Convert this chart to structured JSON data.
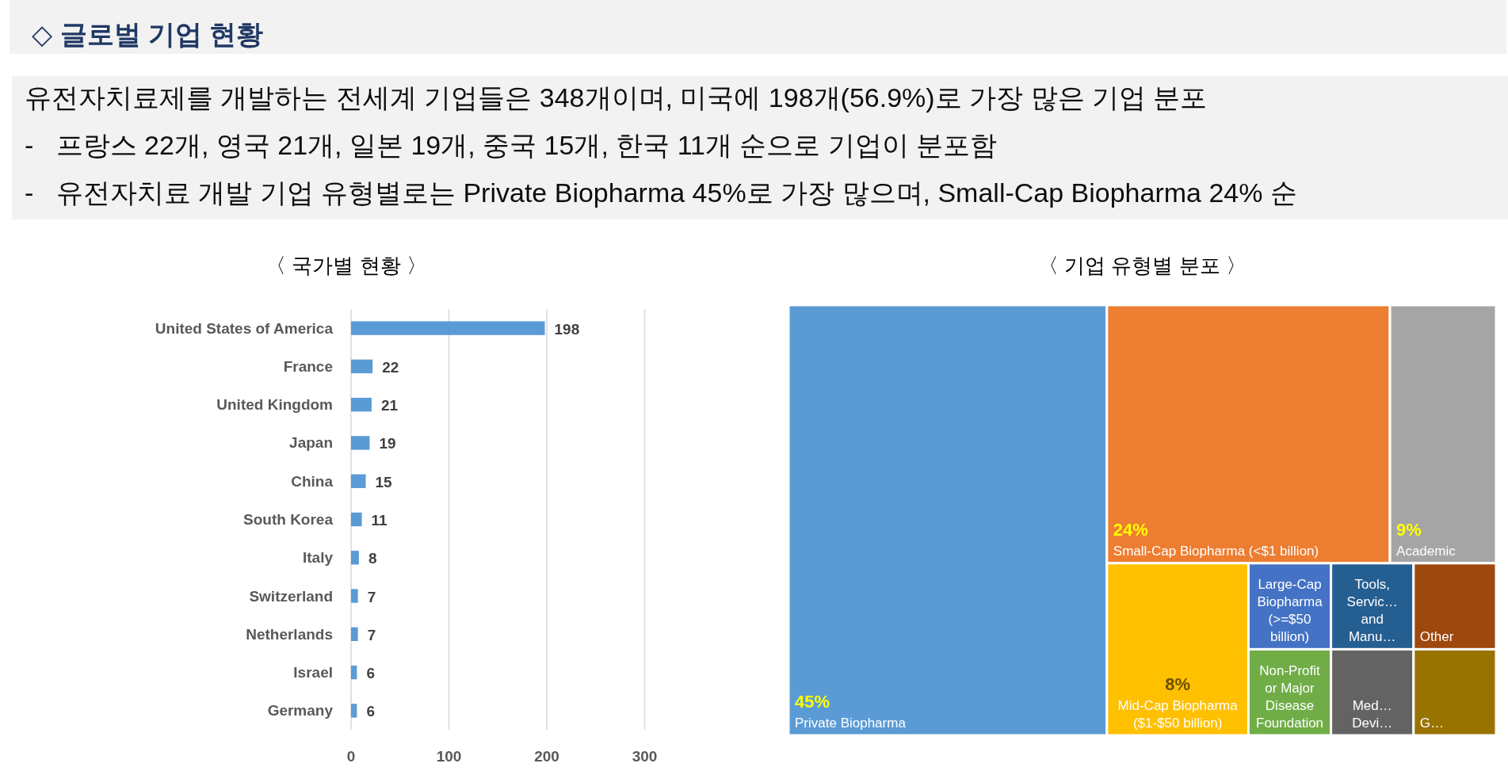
{
  "chart_data": [
    {
      "type": "other",
      "title": "◇ 글로벌 기업 현황",
      "annotations": [
        "유전자치료제를 개발하는 전세계 기업들은 348개이며, 미국에 198개(56.9%)로 가장 많은 기업 분포",
        "-   프랑스 22개, 영국 21개, 일본 19개, 중국 15개, 한국 11개 순으로 기업이 분포함",
        "-   유전자치료 개발 기업 유형별로는 Private Biopharma 45%로 가장 많으며, Small-Cap Biopharma 24% 순"
      ]
    },
    {
      "type": "bar",
      "orientation": "horizontal",
      "title": "〈 국가별 현황 〉",
      "categories": [
        "United States of America",
        "France",
        "United Kingdom",
        "Japan",
        "China",
        "South Korea",
        "Italy",
        "Switzerland",
        "Netherlands",
        "Israel",
        "Germany"
      ],
      "values": [
        198,
        22,
        21,
        19,
        15,
        11,
        8,
        7,
        7,
        6,
        6
      ],
      "color": "#5b9bd5",
      "xlim": [
        0,
        300
      ],
      "xticks": [
        0,
        100,
        200,
        300
      ],
      "grid": "x",
      "data_labels": true
    },
    {
      "type": "other",
      "title": "〈 기업 유형별 분포 〉",
      "categories": [
        "Private Biopharma",
        "Small-Cap Biopharma (<$1 billion)",
        "Academic",
        "Mid-Cap Biopharma ($1-$50 billion)",
        "Large-Cap Biopharma (>=$50 billion)",
        "Non-Profit or Major Disease Foundation",
        "Tools, Servic… and Manu…",
        "Other",
        "Med… Devi…",
        "G…"
      ],
      "values": [
        45,
        24,
        9,
        8,
        null,
        null,
        null,
        null,
        null,
        null
      ],
      "colors": [
        "#5b9bd5",
        "#ed7d31",
        "#a5a5a5",
        "#ffc000",
        "#4472c4",
        "#70ad47",
        "#255e91",
        "#9e480e",
        "#636363",
        "#997300"
      ],
      "value_labels": [
        "45%",
        "24%",
        "9%",
        "8%",
        null,
        null,
        null,
        null,
        null,
        null
      ]
    }
  ]
}
